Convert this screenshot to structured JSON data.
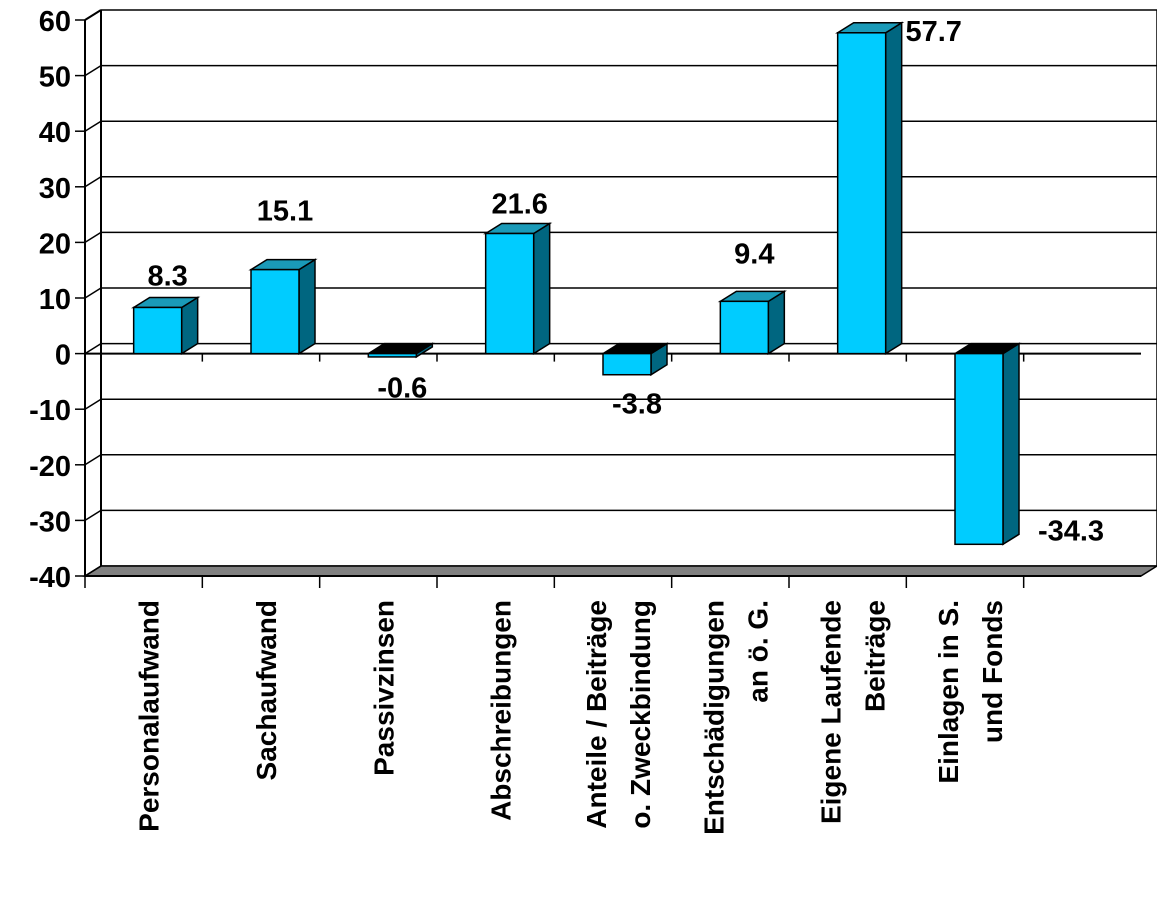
{
  "chart_data": {
    "type": "bar",
    "categories": [
      [
        "Personalaufwand"
      ],
      [
        "Sachaufwand"
      ],
      [
        "Passivzinsen"
      ],
      [
        "Abschreibungen"
      ],
      [
        "Anteile / Beiträge",
        "o. Zweckbindung"
      ],
      [
        "Entschädigungen",
        "an ö. G."
      ],
      [
        "Eigene Laufende",
        "Beiträge"
      ],
      [
        "Einlagen in S.",
        "und Fonds"
      ]
    ],
    "values": [
      8.3,
      15.1,
      -0.6,
      21.6,
      -3.8,
      9.4,
      57.7,
      -34.3
    ],
    "value_labels": [
      "8.3",
      "15.1",
      "-0.6",
      "21.6",
      "-3.8",
      "9.4",
      "57.7",
      "-34.3"
    ],
    "y_ticks": [
      "60",
      "50",
      "40",
      "30",
      "20",
      "10",
      "0",
      "-10",
      "-20",
      "-30",
      "-40"
    ],
    "ylim": [
      -40,
      60
    ],
    "title": "",
    "xlabel": "",
    "ylabel": "",
    "grid": true,
    "style": "3d-bar",
    "colors": {
      "bar_front": "#00ccff",
      "bar_top": "#1a9ab8",
      "bar_side": "#006680",
      "floor": "#808080",
      "grid": "#000000"
    }
  }
}
